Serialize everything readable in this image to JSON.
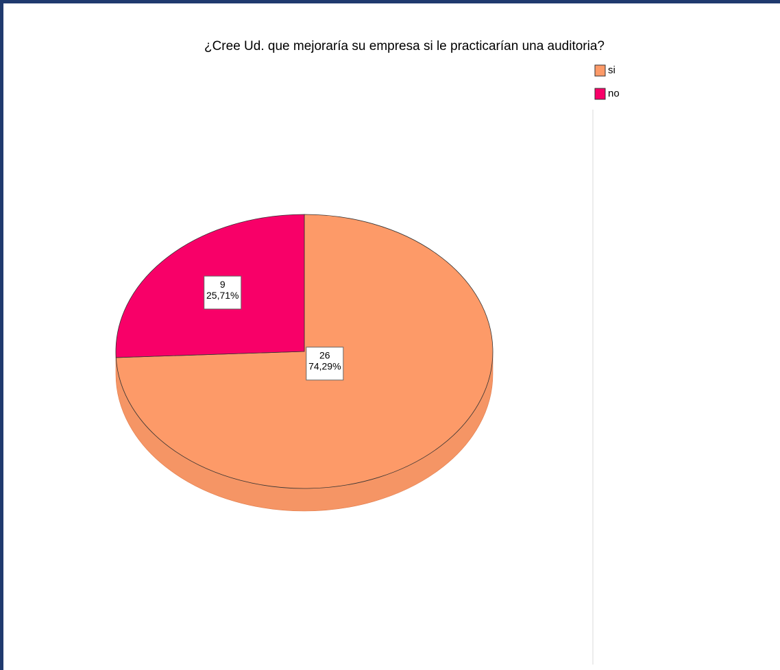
{
  "chart_data": {
    "type": "pie",
    "title": "¿Cree Ud. que mejoraría su empresa si le practicarían una auditoria?",
    "categories": [
      "si",
      "no"
    ],
    "values": [
      26,
      9
    ],
    "percents": [
      74.29,
      25.71
    ],
    "percent_labels": [
      "74,29%",
      "25,71%"
    ],
    "colors": [
      "#fd9a68",
      "#f80068"
    ],
    "legend": "top-right"
  }
}
